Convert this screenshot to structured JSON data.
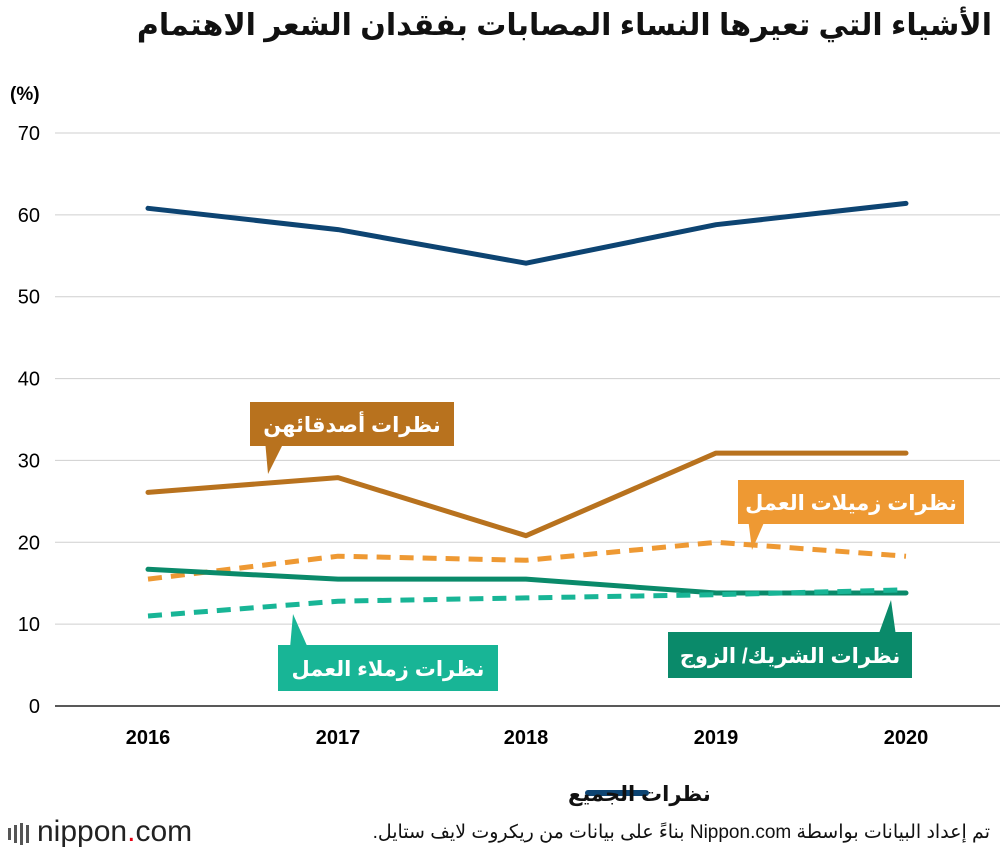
{
  "title": "الأشياء التي تعيرها النساء المصابات بفقدان الشعر الاهتمام",
  "source": "تم إعداد البيانات بواسطة Nippon.com بناءً على بيانات من ريكروت لايف ستايل.",
  "brand": {
    "name": "nippon",
    "dot": ".",
    "tld": "com"
  },
  "colors": {
    "navy": "#0d4472",
    "brown": "#b8721e",
    "orange": "#ee9933",
    "darkgreen": "#0a8a6a",
    "teal": "#18b596"
  },
  "chart_data": {
    "type": "line",
    "title": "الأشياء التي تعيرها النساء المصابات بفقدان الشعر الاهتمام",
    "ylabel": "(%)",
    "ylim": [
      0,
      70
    ],
    "yticks": [
      0,
      10,
      20,
      30,
      40,
      50,
      60,
      70
    ],
    "categories": [
      "2016",
      "2017",
      "2018",
      "2019",
      "2020"
    ],
    "grid": true,
    "legend": "bottom-center",
    "series": [
      {
        "key": "all",
        "name": "نظرات الجميع",
        "color": "#0d4472",
        "dashed": false,
        "label_in": "legend",
        "values": [
          60.8,
          58.2,
          54.1,
          58.8,
          61.4
        ]
      },
      {
        "key": "friends",
        "name": "نظرات أصدقائهن",
        "color": "#b8721e",
        "dashed": false,
        "label_in": "callout",
        "values": [
          26.1,
          27.9,
          20.8,
          30.9,
          30.9
        ]
      },
      {
        "key": "female_coworkers",
        "name": "نظرات زميلات العمل",
        "color": "#ee9933",
        "dashed": true,
        "label_in": "callout",
        "values": [
          15.5,
          18.3,
          17.8,
          20.0,
          18.3
        ]
      },
      {
        "key": "partner",
        "name": "نظرات الشريك/ الزوج",
        "color": "#0a8a6a",
        "dashed": false,
        "label_in": "callout",
        "values": [
          16.7,
          15.5,
          15.5,
          13.8,
          13.8
        ]
      },
      {
        "key": "male_coworkers",
        "name": "نظرات زملاء العمل",
        "color": "#18b596",
        "dashed": true,
        "label_in": "callout",
        "values": [
          11.0,
          12.8,
          13.2,
          13.6,
          14.2
        ]
      }
    ]
  }
}
